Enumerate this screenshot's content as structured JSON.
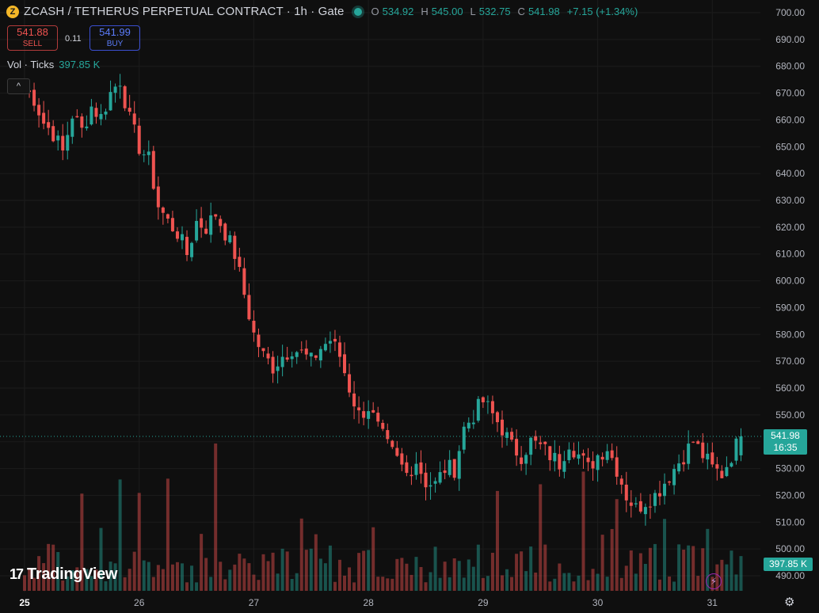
{
  "header": {
    "coin_icon": "zcash-coin-icon",
    "coin_glyph": "Z",
    "title": "ZCASH / TETHERUS PERPETUAL CONTRACT · 1h · Gate",
    "o_label": "O",
    "o_value": "534.92",
    "h_label": "H",
    "h_value": "545.00",
    "l_label": "L",
    "l_value": "532.75",
    "c_label": "C",
    "c_value": "541.98",
    "change": "+7.15 (+1.34%)"
  },
  "trade": {
    "sell_price": "541.88",
    "sell_label": "SELL",
    "spread": "0.11",
    "buy_price": "541.99",
    "buy_label": "BUY"
  },
  "volume_legend": {
    "label": "Vol · Ticks",
    "value": "397.85 K"
  },
  "collapse_glyph": "^",
  "price_tag": {
    "price": "541.98",
    "countdown": "16:35"
  },
  "volume_tag": "397.85 K",
  "brand": {
    "mark": "17",
    "name": "TradingView"
  },
  "flash_glyph": "⚡",
  "settings_glyph": "⚙",
  "colors": {
    "up": "#26a69a",
    "down": "#ef5350",
    "background": "#0f0f0f",
    "grid": "#1c1c1c"
  },
  "chart_data": {
    "type": "candlestick",
    "y_ticks": [
      "700.00",
      "690.00",
      "680.00",
      "670.00",
      "660.00",
      "650.00",
      "640.00",
      "630.00",
      "620.00",
      "610.00",
      "600.00",
      "590.00",
      "580.00",
      "570.00",
      "560.00",
      "550.00",
      "540.00",
      "530.00",
      "520.00",
      "510.00",
      "500.00",
      "490.00"
    ],
    "ylim": [
      487,
      703
    ],
    "x_ticks": [
      {
        "label": "25",
        "pos": 0,
        "bold": true
      },
      {
        "label": "26",
        "pos": 24
      },
      {
        "label": "27",
        "pos": 48
      },
      {
        "label": "28",
        "pos": 72
      },
      {
        "label": "29",
        "pos": 96
      },
      {
        "label": "30",
        "pos": 120
      },
      {
        "label": "31",
        "pos": 144
      }
    ],
    "current_price": 541.98,
    "candle_count": 151,
    "close_anchors": [
      [
        0,
        672
      ],
      [
        2,
        668
      ],
      [
        4,
        659
      ],
      [
        6,
        655
      ],
      [
        8,
        648
      ],
      [
        10,
        662
      ],
      [
        12,
        656
      ],
      [
        14,
        665
      ],
      [
        16,
        661
      ],
      [
        18,
        670
      ],
      [
        20,
        675
      ],
      [
        22,
        660
      ],
      [
        24,
        650
      ],
      [
        26,
        645
      ],
      [
        28,
        628
      ],
      [
        30,
        622
      ],
      [
        32,
        618
      ],
      [
        34,
        610
      ],
      [
        36,
        622
      ],
      [
        38,
        620
      ],
      [
        40,
        625
      ],
      [
        42,
        618
      ],
      [
        44,
        610
      ],
      [
        46,
        595
      ],
      [
        48,
        580
      ],
      [
        50,
        572
      ],
      [
        52,
        568
      ],
      [
        54,
        572
      ],
      [
        56,
        575
      ],
      [
        58,
        573
      ],
      [
        60,
        570
      ],
      [
        62,
        575
      ],
      [
        64,
        578
      ],
      [
        66,
        572
      ],
      [
        68,
        560
      ],
      [
        70,
        550
      ],
      [
        72,
        553
      ],
      [
        74,
        545
      ],
      [
        76,
        538
      ],
      [
        78,
        533
      ],
      [
        80,
        528
      ],
      [
        82,
        533
      ],
      [
        84,
        525
      ],
      [
        86,
        524
      ],
      [
        88,
        530
      ],
      [
        90,
        530
      ],
      [
        92,
        545
      ],
      [
        94,
        550
      ],
      [
        96,
        555
      ],
      [
        98,
        550
      ],
      [
        100,
        545
      ],
      [
        102,
        538
      ],
      [
        104,
        535
      ],
      [
        106,
        540
      ],
      [
        108,
        538
      ],
      [
        110,
        535
      ],
      [
        112,
        532
      ],
      [
        114,
        540
      ],
      [
        116,
        535
      ],
      [
        118,
        530
      ],
      [
        120,
        535
      ],
      [
        122,
        538
      ],
      [
        124,
        530
      ],
      [
        126,
        520
      ],
      [
        128,
        515
      ],
      [
        130,
        518
      ],
      [
        132,
        520
      ],
      [
        134,
        525
      ],
      [
        136,
        530
      ],
      [
        138,
        535
      ],
      [
        140,
        540
      ],
      [
        142,
        535
      ],
      [
        144,
        530
      ],
      [
        146,
        528
      ],
      [
        148,
        535
      ],
      [
        150,
        541.98
      ]
    ],
    "volume_max_units": 530
  }
}
